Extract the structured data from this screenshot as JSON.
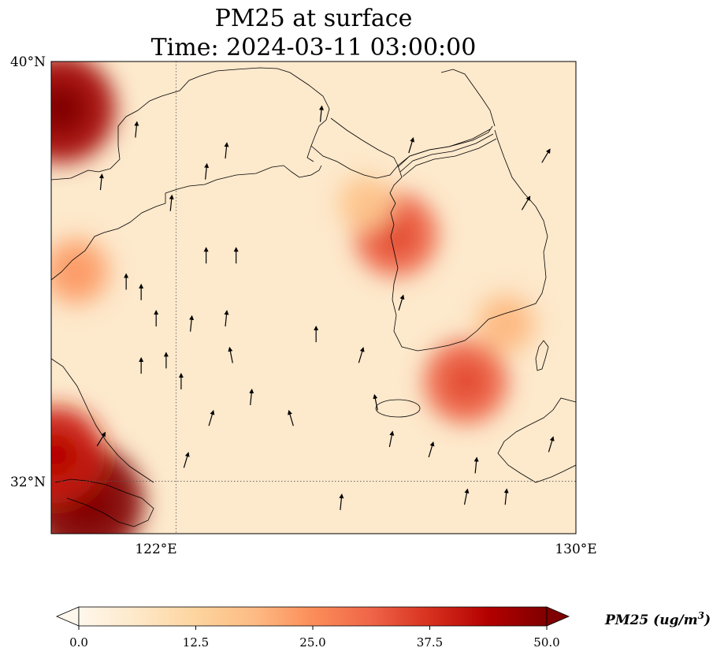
{
  "title": {
    "line1": "PM25 at surface",
    "line2": "Time: 2024-03-11 03:00:00"
  },
  "map": {
    "lon_range": [
      119.5,
      130
    ],
    "lat_range": [
      31,
      40
    ],
    "lat_ticks": [
      {
        "value": 40,
        "label": "40°N"
      },
      {
        "value": 32,
        "label": "32°N"
      }
    ],
    "lon_ticks": [
      {
        "value": 122,
        "label": "122°E"
      },
      {
        "value": 130,
        "label": "130°E"
      }
    ],
    "gridlines": {
      "lon": [
        122
      ],
      "lat": [
        32
      ]
    },
    "colormap": "OrRd",
    "hotspots": [
      {
        "lon": 119.7,
        "lat": 39.1,
        "value": 46
      },
      {
        "lon": 120.2,
        "lat": 31.6,
        "value": 50
      },
      {
        "lon": 119.6,
        "lat": 32.5,
        "value": 40
      },
      {
        "lon": 126.4,
        "lat": 36.7,
        "value": 32
      },
      {
        "lon": 127.8,
        "lat": 33.9,
        "value": 32
      },
      {
        "lon": 128.6,
        "lat": 35.0,
        "value": 18
      },
      {
        "lon": 125.8,
        "lat": 37.3,
        "value": 16
      },
      {
        "lon": 120.0,
        "lat": 36.0,
        "value": 22
      }
    ],
    "wind_arrows": [
      {
        "lon": 121.2,
        "lat": 38.7,
        "u": 0.1,
        "v": 1
      },
      {
        "lon": 122.6,
        "lat": 37.9,
        "u": 0.1,
        "v": 1
      },
      {
        "lon": 123.0,
        "lat": 38.3,
        "u": 0.1,
        "v": 1
      },
      {
        "lon": 121.9,
        "lat": 37.3,
        "u": 0.1,
        "v": 1
      },
      {
        "lon": 122.6,
        "lat": 36.3,
        "u": 0,
        "v": 1
      },
      {
        "lon": 123.2,
        "lat": 36.3,
        "u": 0,
        "v": 1
      },
      {
        "lon": 121.3,
        "lat": 35.6,
        "u": 0,
        "v": 1
      },
      {
        "lon": 121.6,
        "lat": 35.1,
        "u": 0,
        "v": 1
      },
      {
        "lon": 122.3,
        "lat": 35.0,
        "u": 0.1,
        "v": 1
      },
      {
        "lon": 123.0,
        "lat": 35.1,
        "u": 0.1,
        "v": 1
      },
      {
        "lon": 121.3,
        "lat": 34.2,
        "u": 0,
        "v": 1
      },
      {
        "lon": 121.8,
        "lat": 34.3,
        "u": 0,
        "v": 1
      },
      {
        "lon": 122.7,
        "lat": 33.2,
        "u": 0.3,
        "v": 1
      },
      {
        "lon": 123.5,
        "lat": 33.6,
        "u": 0.1,
        "v": 1
      },
      {
        "lon": 122.2,
        "lat": 32.4,
        "u": 0.3,
        "v": 1
      },
      {
        "lon": 124.8,
        "lat": 34.8,
        "u": 0,
        "v": 1
      },
      {
        "lon": 124.3,
        "lat": 33.2,
        "u": -0.3,
        "v": 1
      },
      {
        "lon": 125.3,
        "lat": 31.6,
        "u": 0.1,
        "v": 1
      },
      {
        "lon": 126.3,
        "lat": 32.8,
        "u": 0.2,
        "v": 1
      },
      {
        "lon": 127.1,
        "lat": 32.6,
        "u": 0.3,
        "v": 1
      },
      {
        "lon": 128.6,
        "lat": 31.7,
        "u": 0.1,
        "v": 1
      },
      {
        "lon": 129.0,
        "lat": 37.3,
        "u": 0.6,
        "v": 1
      },
      {
        "lon": 129.4,
        "lat": 38.2,
        "u": 0.6,
        "v": 1
      },
      {
        "lon": 124.9,
        "lat": 39.0,
        "u": 0.1,
        "v": 1
      },
      {
        "lon": 126.7,
        "lat": 38.4,
        "u": 0.3,
        "v": 1
      },
      {
        "lon": 125.7,
        "lat": 34.4,
        "u": 0.3,
        "v": 1
      },
      {
        "lon": 126.5,
        "lat": 35.4,
        "u": 0.3,
        "v": 1
      },
      {
        "lon": 126.0,
        "lat": 33.5,
        "u": -0.2,
        "v": 1
      },
      {
        "lon": 123.1,
        "lat": 34.4,
        "u": -0.2,
        "v": 1
      },
      {
        "lon": 122.1,
        "lat": 33.9,
        "u": 0,
        "v": 1
      },
      {
        "lon": 120.5,
        "lat": 32.8,
        "u": 0.6,
        "v": 1
      },
      {
        "lon": 121.0,
        "lat": 35.8,
        "u": 0,
        "v": 1
      },
      {
        "lon": 120.5,
        "lat": 37.7,
        "u": 0.1,
        "v": 1
      },
      {
        "lon": 127.8,
        "lat": 31.7,
        "u": 0.2,
        "v": 1
      },
      {
        "lon": 128.0,
        "lat": 32.3,
        "u": 0.1,
        "v": 1
      },
      {
        "lon": 129.5,
        "lat": 32.7,
        "u": 0.3,
        "v": 1
      }
    ]
  },
  "colorbar": {
    "min": 0,
    "max": 50,
    "ticks": [
      "0.0",
      "12.5",
      "25.0",
      "37.5",
      "50.0"
    ],
    "extend": "both",
    "label": "PM25 (ug/m",
    "label_sup": "3",
    "label_end": ")"
  }
}
